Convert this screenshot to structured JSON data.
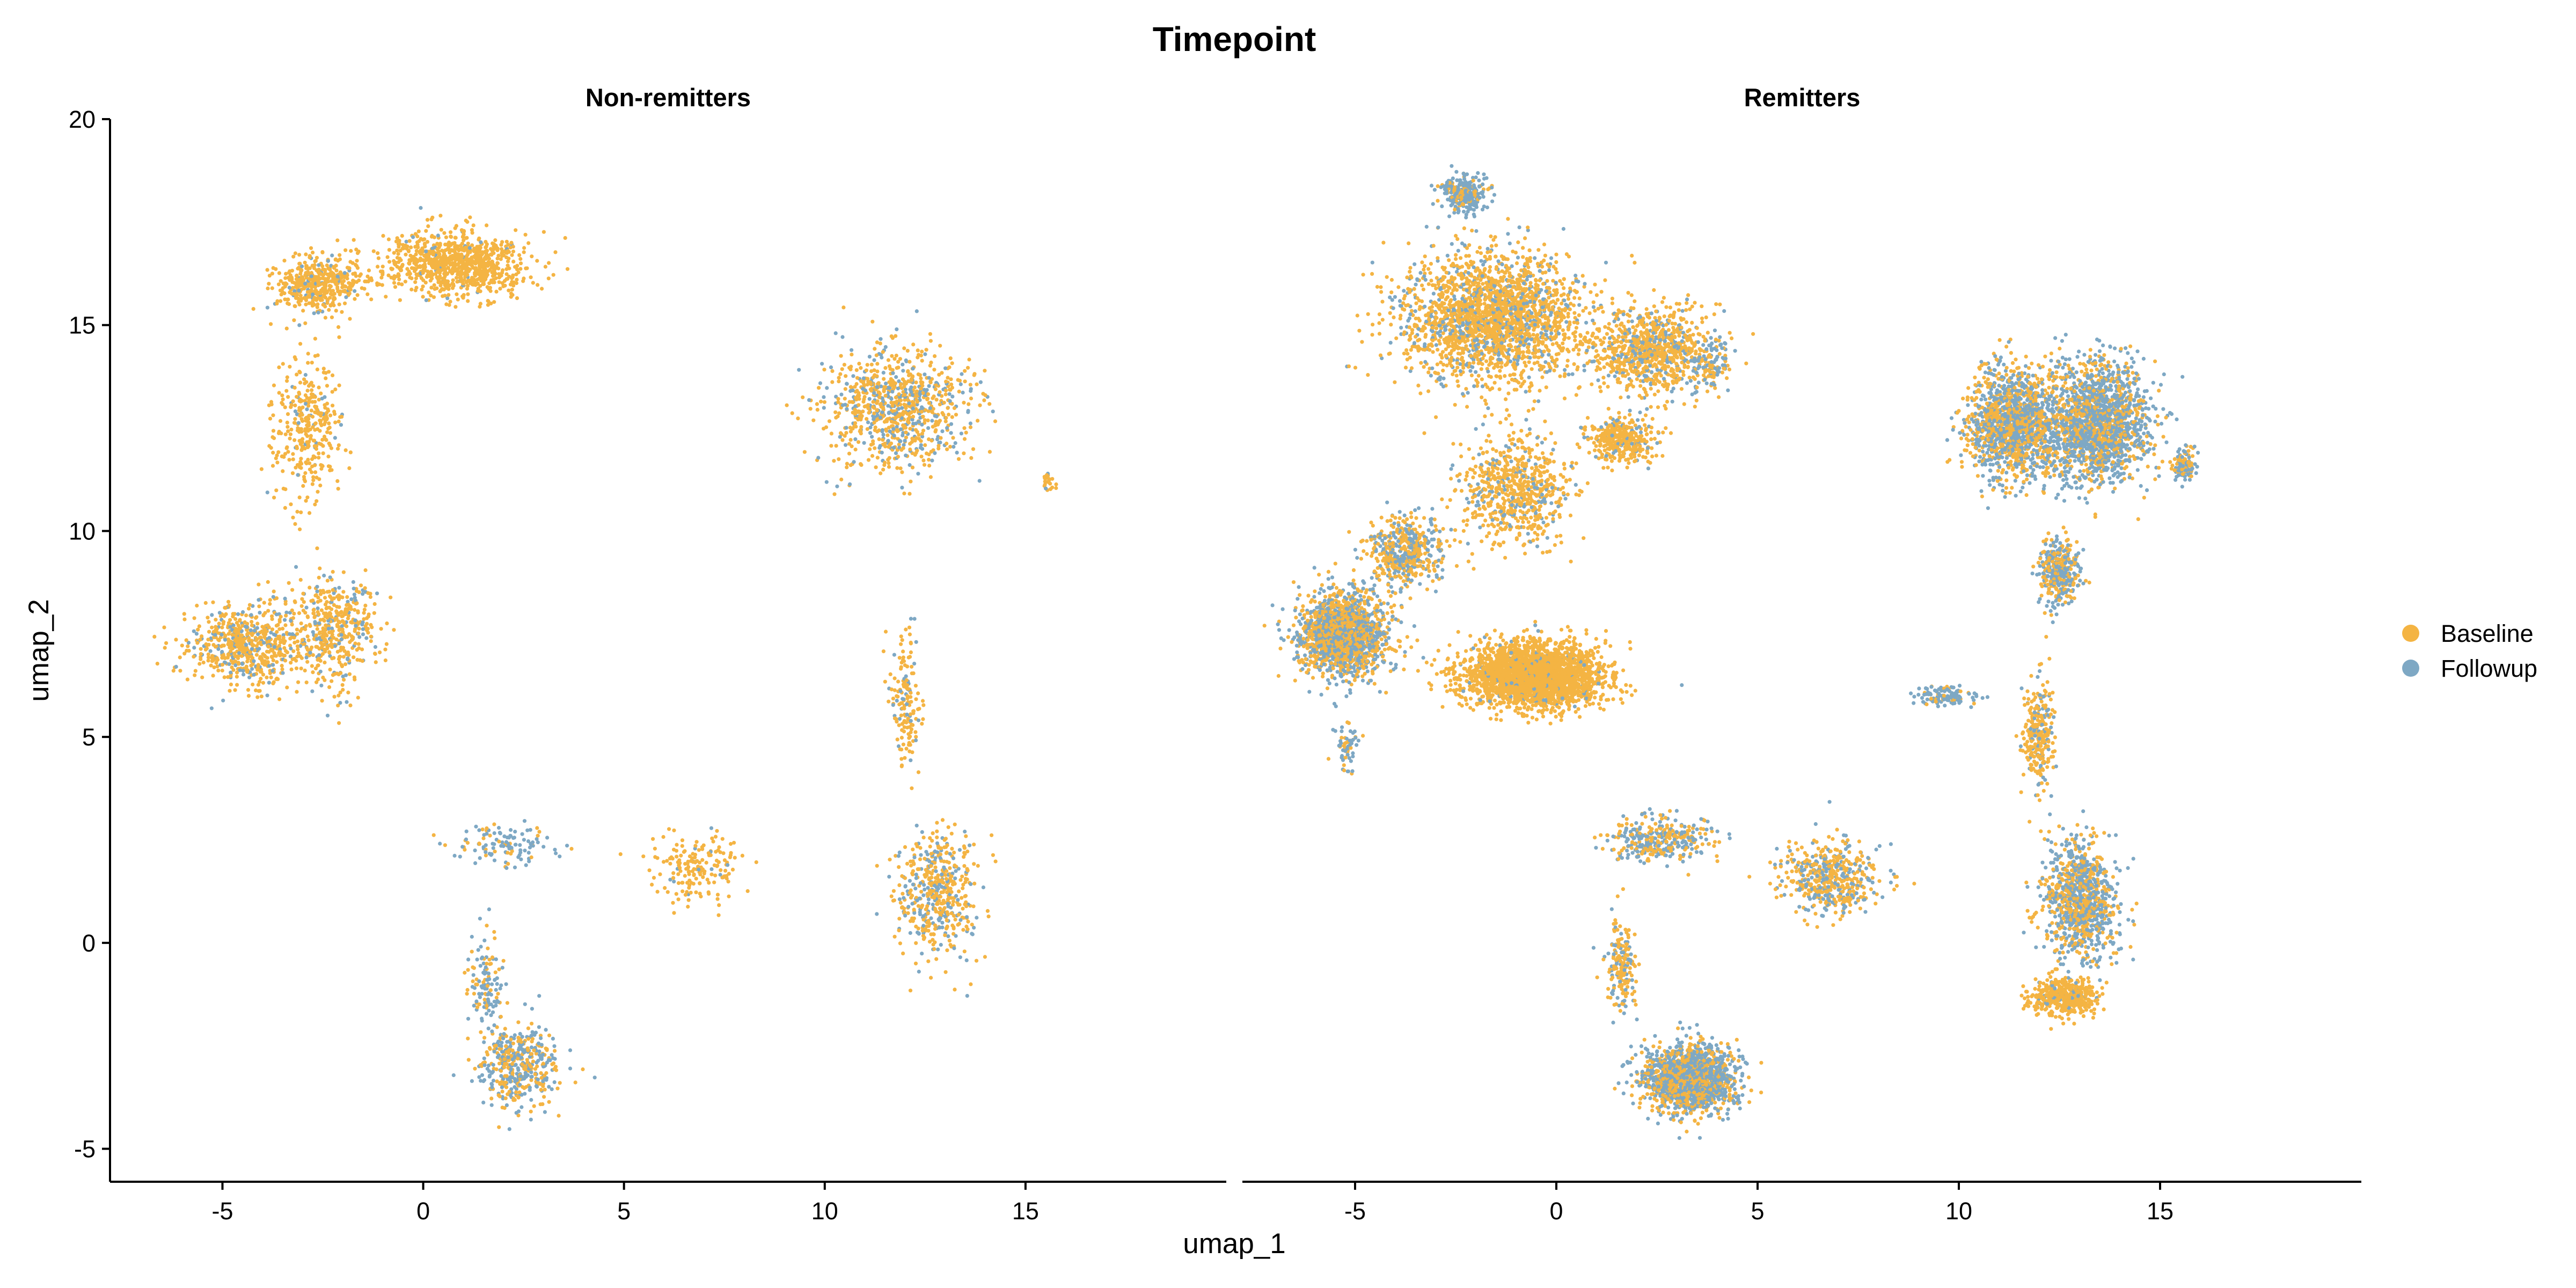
{
  "chart_data": {
    "type": "scatter",
    "title": "Timepoint",
    "xlabel": "umap_1",
    "ylabel": "umap_2",
    "xlim": [
      -7.8,
      20
    ],
    "ylim": [
      -5.8,
      20
    ],
    "x_ticks": [
      -5,
      0,
      5,
      10,
      15
    ],
    "y_ticks": [
      -5,
      0,
      5,
      10,
      15,
      20
    ],
    "x_tick_labels": [
      "-5",
      "0",
      "5",
      "10",
      "15"
    ],
    "y_tick_labels": [
      "-5",
      "0",
      "5",
      "10",
      "15",
      "20"
    ],
    "grid": false,
    "legend_position": "right",
    "series": [
      {
        "name": "Baseline",
        "color": "#F4B443"
      },
      {
        "name": "Followup",
        "color": "#7EA8C4"
      }
    ],
    "facets": [
      {
        "name": "Non-remitters",
        "clusters": [
          {
            "x": 0.8,
            "y": 16.5,
            "sx": 1.6,
            "sy": 0.7,
            "n": 900,
            "followup": 0.05
          },
          {
            "x": -2.6,
            "y": 16.0,
            "sx": 1.0,
            "sy": 0.6,
            "n": 450,
            "followup": 0.1
          },
          {
            "x": -2.9,
            "y": 12.5,
            "sx": 0.8,
            "sy": 1.6,
            "n": 350,
            "followup": 0.08
          },
          {
            "x": -4.4,
            "y": 7.2,
            "sx": 1.3,
            "sy": 0.9,
            "n": 650,
            "followup": 0.2
          },
          {
            "x": -2.2,
            "y": 7.6,
            "sx": 0.9,
            "sy": 1.2,
            "n": 450,
            "followup": 0.2
          },
          {
            "x": 11.8,
            "y": 13.0,
            "sx": 1.6,
            "sy": 1.3,
            "n": 900,
            "followup": 0.32
          },
          {
            "x": 12.0,
            "y": 6.0,
            "sx": 0.35,
            "sy": 1.4,
            "n": 160,
            "followup": 0.2
          },
          {
            "x": 12.8,
            "y": 1.2,
            "sx": 0.9,
            "sy": 1.4,
            "n": 500,
            "followup": 0.35
          },
          {
            "x": 6.8,
            "y": 1.8,
            "sx": 1.0,
            "sy": 0.7,
            "n": 180,
            "followup": 0.1
          },
          {
            "x": 2.4,
            "y": -3.0,
            "sx": 0.9,
            "sy": 0.9,
            "n": 450,
            "followup": 0.55
          },
          {
            "x": 1.6,
            "y": -1.0,
            "sx": 0.4,
            "sy": 1.0,
            "n": 120,
            "followup": 0.6
          },
          {
            "x": 2.0,
            "y": 2.4,
            "sx": 1.1,
            "sy": 0.4,
            "n": 120,
            "followup": 0.65
          },
          {
            "x": 15.6,
            "y": 11.2,
            "sx": 0.15,
            "sy": 0.25,
            "n": 25,
            "followup": 0.1
          }
        ]
      },
      {
        "name": "Remitters",
        "clusters": [
          {
            "x": -1.6,
            "y": 15.2,
            "sx": 2.0,
            "sy": 1.4,
            "n": 2200,
            "followup": 0.22
          },
          {
            "x": 2.4,
            "y": 14.4,
            "sx": 1.4,
            "sy": 0.9,
            "n": 900,
            "followup": 0.22
          },
          {
            "x": 1.6,
            "y": 12.2,
            "sx": 0.8,
            "sy": 0.5,
            "n": 350,
            "followup": 0.1
          },
          {
            "x": -2.3,
            "y": 18.2,
            "sx": 0.5,
            "sy": 0.4,
            "n": 280,
            "followup": 0.75
          },
          {
            "x": -1.0,
            "y": 11.0,
            "sx": 1.2,
            "sy": 1.2,
            "n": 700,
            "followup": 0.2
          },
          {
            "x": -5.3,
            "y": 7.5,
            "sx": 1.0,
            "sy": 0.9,
            "n": 1700,
            "followup": 0.45
          },
          {
            "x": -0.6,
            "y": 6.5,
            "sx": 1.6,
            "sy": 0.7,
            "n": 2700,
            "followup": 0.05
          },
          {
            "x": -3.8,
            "y": 9.5,
            "sx": 0.8,
            "sy": 0.8,
            "n": 500,
            "followup": 0.4
          },
          {
            "x": 11.4,
            "y": 12.6,
            "sx": 1.1,
            "sy": 1.2,
            "n": 1500,
            "followup": 0.5
          },
          {
            "x": 13.5,
            "y": 12.6,
            "sx": 1.1,
            "sy": 1.3,
            "n": 1700,
            "followup": 0.65
          },
          {
            "x": 12.5,
            "y": 9.0,
            "sx": 0.45,
            "sy": 0.8,
            "n": 350,
            "followup": 0.6
          },
          {
            "x": 12.0,
            "y": 5.0,
            "sx": 0.35,
            "sy": 1.2,
            "n": 280,
            "followup": 0.2
          },
          {
            "x": 13.0,
            "y": 1.0,
            "sx": 0.8,
            "sy": 1.3,
            "n": 1000,
            "followup": 0.55
          },
          {
            "x": 12.6,
            "y": -1.3,
            "sx": 0.7,
            "sy": 0.4,
            "n": 500,
            "followup": 0.1
          },
          {
            "x": 3.3,
            "y": -3.3,
            "sx": 1.0,
            "sy": 0.7,
            "n": 1700,
            "followup": 0.62
          },
          {
            "x": 1.6,
            "y": -0.5,
            "sx": 0.35,
            "sy": 1.0,
            "n": 180,
            "followup": 0.4
          },
          {
            "x": 6.8,
            "y": 1.6,
            "sx": 1.1,
            "sy": 0.8,
            "n": 500,
            "followup": 0.38
          },
          {
            "x": 2.5,
            "y": 2.5,
            "sx": 1.2,
            "sy": 0.5,
            "n": 350,
            "followup": 0.5
          },
          {
            "x": 9.6,
            "y": 6.0,
            "sx": 0.7,
            "sy": 0.2,
            "n": 120,
            "followup": 0.8
          },
          {
            "x": 3.8,
            "y": 14.0,
            "sx": 0.4,
            "sy": 0.6,
            "n": 100,
            "followup": 0.6
          },
          {
            "x": 15.6,
            "y": 11.6,
            "sx": 0.25,
            "sy": 0.35,
            "n": 120,
            "followup": 0.6
          },
          {
            "x": -5.2,
            "y": 4.8,
            "sx": 0.3,
            "sy": 0.5,
            "n": 60,
            "followup": 0.6
          }
        ]
      }
    ]
  }
}
